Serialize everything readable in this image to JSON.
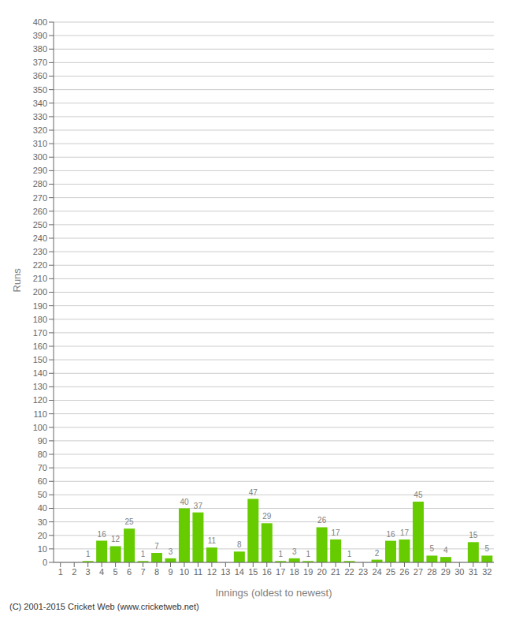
{
  "chart_data": {
    "type": "bar",
    "categories": [
      "1",
      "2",
      "3",
      "4",
      "5",
      "6",
      "7",
      "8",
      "9",
      "10",
      "11",
      "12",
      "13",
      "14",
      "15",
      "16",
      "17",
      "18",
      "19",
      "20",
      "21",
      "22",
      "23",
      "24",
      "25",
      "26",
      "27",
      "28",
      "29",
      "30",
      "31",
      "32"
    ],
    "values": [
      0,
      0,
      1,
      16,
      12,
      25,
      1,
      7,
      3,
      40,
      37,
      11,
      0,
      8,
      47,
      29,
      1,
      3,
      1,
      26,
      17,
      1,
      0,
      2,
      16,
      17,
      45,
      5,
      4,
      0,
      15,
      5
    ],
    "color": "#66cc00",
    "xlabel": "Innings (oldest to newest)",
    "ylabel": "Runs",
    "ylim": [
      0,
      400
    ],
    "yticks": [
      0,
      10,
      20,
      30,
      40,
      50,
      60,
      70,
      80,
      90,
      100,
      110,
      120,
      130,
      140,
      150,
      160,
      170,
      180,
      190,
      200,
      210,
      220,
      230,
      240,
      250,
      260,
      270,
      280,
      290,
      300,
      310,
      320,
      330,
      340,
      350,
      360,
      370,
      380,
      390,
      400
    ],
    "grid": true,
    "data_labels": true,
    "annotations": [
      "(C) 2001-2015 Cricket Web (www.cricketweb.net)"
    ]
  }
}
